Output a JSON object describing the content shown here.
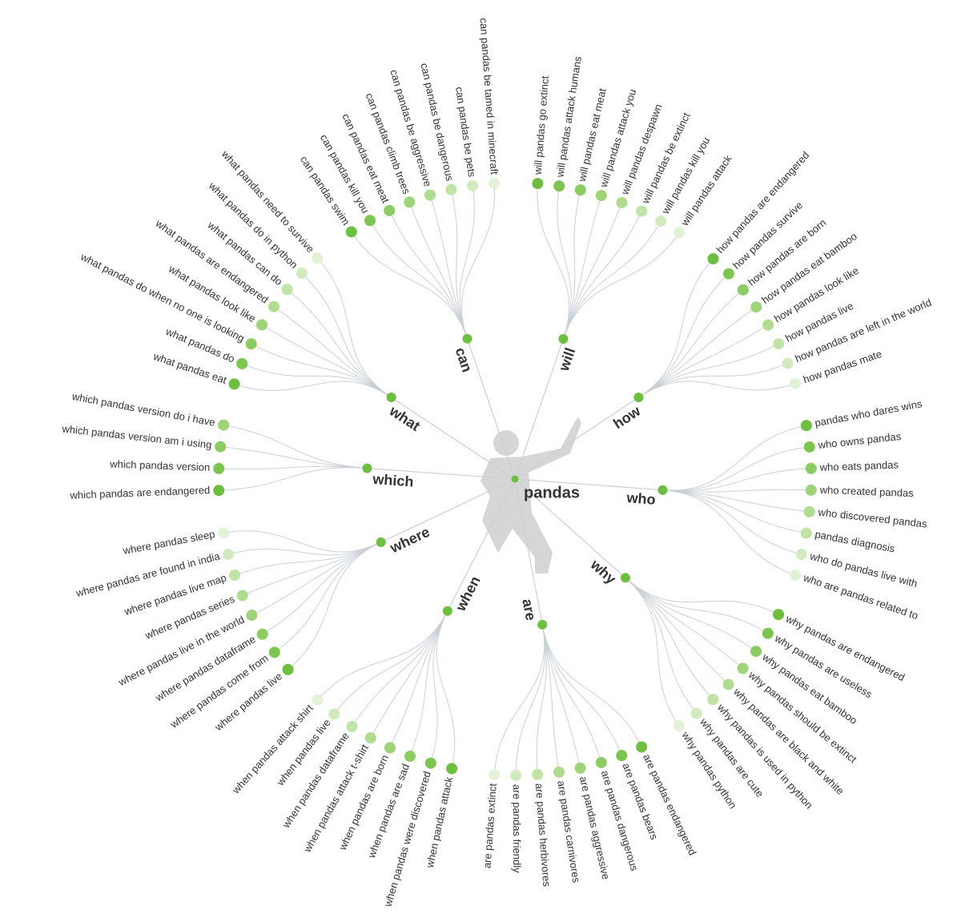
{
  "center": "pandas",
  "branches": [
    {
      "label": "can",
      "leaves": [
        "can pandas swim",
        "can pandas kill you",
        "can pandas eat meat",
        "can pandas climb trees",
        "can pandas be aggressive",
        "can pandas be dangerous",
        "can pandas be pets",
        "can pandas be tamed in minecraft"
      ]
    },
    {
      "label": "will",
      "leaves": [
        "will pandas go extinct",
        "will pandas attack humans",
        "will pandas eat meat",
        "will pandas attack you",
        "will pandas despawn",
        "will pandas be extinct",
        "will pandas kill you",
        "will pandas attack"
      ]
    },
    {
      "label": "how",
      "leaves": [
        "how pandas are endangered",
        "how pandas survive",
        "how pandas are born",
        "how pandas eat bamboo",
        "how pandas look like",
        "how pandas live",
        "how pandas are left in the world",
        "how pandas mate"
      ]
    },
    {
      "label": "who",
      "leaves": [
        "pandas who dares wins",
        "who owns pandas",
        "who eats pandas",
        "who created pandas",
        "who discovered pandas",
        "pandas diagnosis",
        "who do pandas live with",
        "who are pandas related to"
      ]
    },
    {
      "label": "why",
      "leaves": [
        "why pandas are endangered",
        "why pandas are useless",
        "why pandas eat bamboo",
        "why pandas should be extinct",
        "why pandas are black and white",
        "why pandas is used in python",
        "why pandas are cute",
        "why pandas python"
      ]
    },
    {
      "label": "are",
      "leaves": [
        "are pandas endangered",
        "are pandas bears",
        "are pandas dangerous",
        "are pandas aggressive",
        "are pandas carnivores",
        "are pandas herbivores",
        "are pandas friendly",
        "are pandas extinct"
      ]
    },
    {
      "label": "when",
      "leaves": [
        "when pandas attack",
        "when pandas were discovered",
        "when pandas are sad",
        "when pandas are born",
        "when pandas attack t-shirt",
        "when pandas dataframe",
        "when pandas live",
        "when pandas attack shirt"
      ]
    },
    {
      "label": "where",
      "leaves": [
        "where pandas live",
        "where pandas come from",
        "where pandas dataframe",
        "where pandas live in the world",
        "where pandas series",
        "where pandas live map",
        "where pandas are found in india",
        "where pandas sleep"
      ]
    },
    {
      "label": "which",
      "leaves": [
        "which pandas are endangered",
        "which pandas version",
        "which pandas version am i using",
        "which pandas version do i have"
      ]
    },
    {
      "label": "what",
      "leaves": [
        "what pandas eat",
        "what pandas do",
        "what pandas do when no one is looking",
        "what pandas look like",
        "what pandas are endangered",
        "what pandas can do",
        "what pandas do in python",
        "what pandas need to survive"
      ]
    }
  ]
}
